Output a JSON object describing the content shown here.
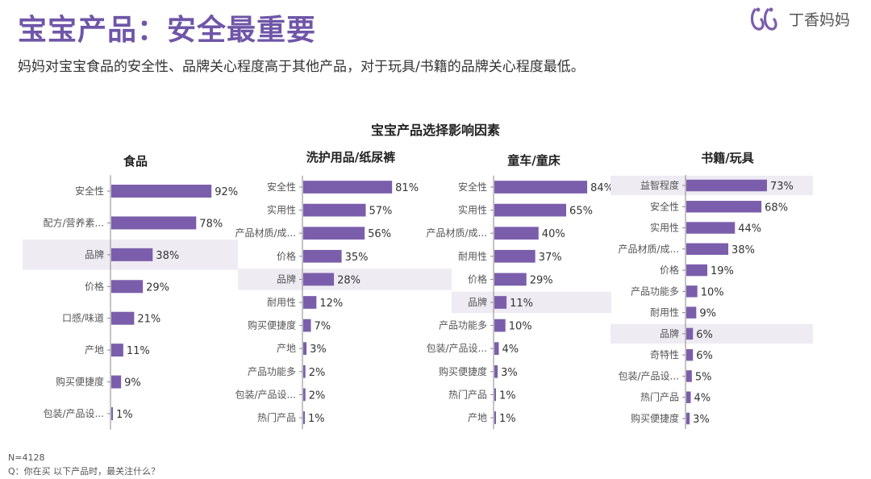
{
  "header": {
    "title": "宝宝产品：安全最重要",
    "subtitle": "妈妈对宝宝食品的安全性、品牌关心程度高于其他产品，对于玩具/书籍的品牌关心程度最低。",
    "logo_text": "丁香妈妈"
  },
  "footnote": {
    "n": "N=4128",
    "question": "Q：你在买 以下产品时，最关注什么？"
  },
  "colors": {
    "accent": "#6f56a8",
    "bar": "#7b5eab",
    "highlight": "#eeebf3"
  },
  "chart_data": {
    "type": "bar",
    "orientation": "horizontal",
    "title": "宝宝产品选择影响因素",
    "unit": "%",
    "highlight_category": "品牌",
    "panels": [
      {
        "title": "食品",
        "categories": [
          "安全性",
          "配方/营养素...",
          "品牌",
          "价格",
          "口感/味道",
          "产地",
          "购买便捷度",
          "包装/产品设..."
        ],
        "values": [
          92,
          78,
          38,
          29,
          21,
          11,
          9,
          1
        ]
      },
      {
        "title": "洗护用品/纸尿裤",
        "categories": [
          "安全性",
          "实用性",
          "产品材质/成...",
          "价格",
          "品牌",
          "耐用性",
          "购买便捷度",
          "产地",
          "产品功能多",
          "包装/产品设...",
          "热门产品"
        ],
        "values": [
          81,
          57,
          56,
          35,
          28,
          12,
          7,
          3,
          2,
          2,
          1
        ]
      },
      {
        "title": "童车/童床",
        "categories": [
          "安全性",
          "实用性",
          "产品材质/成...",
          "耐用性",
          "价格",
          "品牌",
          "产品功能多",
          "包装/产品设...",
          "购买便捷度",
          "热门产品",
          "产地"
        ],
        "values": [
          84,
          65,
          40,
          37,
          29,
          11,
          10,
          4,
          3,
          1,
          1
        ]
      },
      {
        "title": "书籍/玩具",
        "categories": [
          "益智程度",
          "安全性",
          "实用性",
          "产品材质/成...",
          "价格",
          "产品功能多",
          "耐用性",
          "品牌",
          "奇特性",
          "包装/产品设...",
          "热门产品",
          "购买便捷度"
        ],
        "values": [
          73,
          68,
          44,
          38,
          19,
          10,
          9,
          6,
          6,
          5,
          4,
          3
        ],
        "highlight_extra": "益智程度"
      }
    ]
  }
}
